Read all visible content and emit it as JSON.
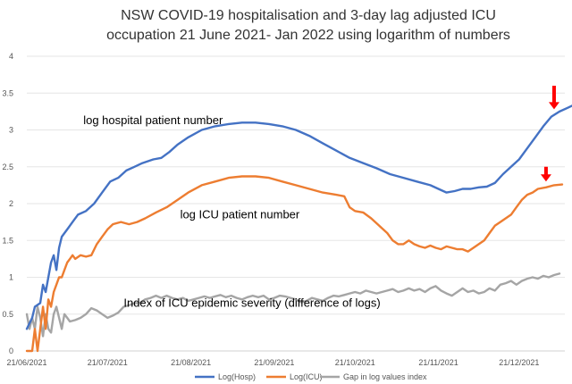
{
  "chart_data": {
    "type": "line",
    "title": "NSW COVID-19 hospitalisation and 3-day lag adjusted  ICU occupation 21 June 2021- Jan 2022 using logarithm of numbers",
    "title_lines": [
      "NSW COVID-19 hospitalisation and 3-day lag adjusted  ICU",
      "occupation 21 June 2021- Jan 2022 using logarithm of numbers"
    ],
    "xlabel": "",
    "ylabel": "",
    "ylim": [
      0,
      4
    ],
    "yticks": [
      "0",
      "0.5",
      "1",
      "1.5",
      "2",
      "2.5",
      "3",
      "3.5",
      "4"
    ],
    "x_range_days": [
      0,
      200
    ],
    "xticks": [
      {
        "label": "21/06/2021",
        "day": 0
      },
      {
        "label": "21/07/2021",
        "day": 30
      },
      {
        "label": "21/08/2021",
        "day": 61
      },
      {
        "label": "21/09/2021",
        "day": 92
      },
      {
        "label": "21/10/2021",
        "day": 122
      },
      {
        "label": "21/11/2021",
        "day": 153
      },
      {
        "label": "21/12/2021",
        "day": 183
      }
    ],
    "x_unit": "days since 21/06/2021",
    "series": [
      {
        "name": "Log(Hosp)",
        "color": "#4472c4",
        "points": [
          [
            0,
            0.3
          ],
          [
            2,
            0.45
          ],
          [
            3,
            0.6
          ],
          [
            5,
            0.65
          ],
          [
            6,
            0.9
          ],
          [
            7,
            0.8
          ],
          [
            8,
            1.0
          ],
          [
            9,
            1.2
          ],
          [
            10,
            1.3
          ],
          [
            11,
            1.1
          ],
          [
            12,
            1.4
          ],
          [
            13,
            1.55
          ],
          [
            15,
            1.65
          ],
          [
            17,
            1.75
          ],
          [
            19,
            1.85
          ],
          [
            22,
            1.9
          ],
          [
            25,
            2.0
          ],
          [
            28,
            2.15
          ],
          [
            31,
            2.3
          ],
          [
            34,
            2.35
          ],
          [
            37,
            2.45
          ],
          [
            40,
            2.5
          ],
          [
            43,
            2.55
          ],
          [
            47,
            2.6
          ],
          [
            50,
            2.62
          ],
          [
            53,
            2.7
          ],
          [
            56,
            2.8
          ],
          [
            60,
            2.9
          ],
          [
            65,
            3.0
          ],
          [
            70,
            3.05
          ],
          [
            75,
            3.08
          ],
          [
            80,
            3.1
          ],
          [
            85,
            3.1
          ],
          [
            90,
            3.08
          ],
          [
            95,
            3.05
          ],
          [
            100,
            3.0
          ],
          [
            105,
            2.92
          ],
          [
            110,
            2.82
          ],
          [
            115,
            2.72
          ],
          [
            120,
            2.62
          ],
          [
            125,
            2.55
          ],
          [
            130,
            2.48
          ],
          [
            135,
            2.4
          ],
          [
            140,
            2.35
          ],
          [
            145,
            2.3
          ],
          [
            150,
            2.25
          ],
          [
            153,
            2.2
          ],
          [
            156,
            2.15
          ],
          [
            159,
            2.17
          ],
          [
            162,
            2.2
          ],
          [
            165,
            2.2
          ],
          [
            168,
            2.22
          ],
          [
            171,
            2.23
          ],
          [
            174,
            2.28
          ],
          [
            177,
            2.4
          ],
          [
            180,
            2.5
          ],
          [
            183,
            2.6
          ],
          [
            186,
            2.75
          ],
          [
            189,
            2.9
          ],
          [
            192,
            3.05
          ],
          [
            195,
            3.18
          ],
          [
            198,
            3.25
          ],
          [
            201,
            3.3
          ],
          [
            204,
            3.35
          ],
          [
            206,
            3.38
          ]
        ]
      },
      {
        "name": "Log(ICU)",
        "color": "#ed7d31",
        "points": [
          [
            0,
            0.0
          ],
          [
            2,
            0.0
          ],
          [
            3,
            0.3
          ],
          [
            4,
            0.0
          ],
          [
            6,
            0.6
          ],
          [
            7,
            0.3
          ],
          [
            8,
            0.7
          ],
          [
            9,
            0.6
          ],
          [
            10,
            0.8
          ],
          [
            11,
            0.9
          ],
          [
            12,
            1.0
          ],
          [
            13,
            1.0
          ],
          [
            14,
            1.1
          ],
          [
            15,
            1.2
          ],
          [
            16,
            1.25
          ],
          [
            17,
            1.3
          ],
          [
            18,
            1.25
          ],
          [
            20,
            1.3
          ],
          [
            22,
            1.28
          ],
          [
            24,
            1.3
          ],
          [
            26,
            1.45
          ],
          [
            28,
            1.55
          ],
          [
            30,
            1.65
          ],
          [
            32,
            1.72
          ],
          [
            35,
            1.75
          ],
          [
            38,
            1.72
          ],
          [
            41,
            1.75
          ],
          [
            44,
            1.8
          ],
          [
            48,
            1.88
          ],
          [
            52,
            1.95
          ],
          [
            56,
            2.05
          ],
          [
            60,
            2.15
          ],
          [
            65,
            2.25
          ],
          [
            70,
            2.3
          ],
          [
            75,
            2.35
          ],
          [
            80,
            2.37
          ],
          [
            85,
            2.37
          ],
          [
            90,
            2.35
          ],
          [
            95,
            2.3
          ],
          [
            100,
            2.25
          ],
          [
            105,
            2.2
          ],
          [
            110,
            2.15
          ],
          [
            115,
            2.12
          ],
          [
            118,
            2.1
          ],
          [
            120,
            1.95
          ],
          [
            122,
            1.9
          ],
          [
            125,
            1.88
          ],
          [
            128,
            1.8
          ],
          [
            131,
            1.7
          ],
          [
            134,
            1.6
          ],
          [
            136,
            1.5
          ],
          [
            138,
            1.45
          ],
          [
            140,
            1.45
          ],
          [
            142,
            1.5
          ],
          [
            144,
            1.45
          ],
          [
            146,
            1.42
          ],
          [
            148,
            1.4
          ],
          [
            150,
            1.43
          ],
          [
            152,
            1.4
          ],
          [
            154,
            1.38
          ],
          [
            156,
            1.42
          ],
          [
            158,
            1.4
          ],
          [
            160,
            1.38
          ],
          [
            162,
            1.38
          ],
          [
            164,
            1.35
          ],
          [
            166,
            1.4
          ],
          [
            168,
            1.45
          ],
          [
            170,
            1.5
          ],
          [
            172,
            1.6
          ],
          [
            174,
            1.7
          ],
          [
            176,
            1.75
          ],
          [
            178,
            1.8
          ],
          [
            180,
            1.85
          ],
          [
            182,
            1.95
          ],
          [
            184,
            2.05
          ],
          [
            186,
            2.12
          ],
          [
            188,
            2.15
          ],
          [
            190,
            2.2
          ],
          [
            193,
            2.22
          ],
          [
            196,
            2.25
          ],
          [
            199,
            2.26
          ]
        ]
      },
      {
        "name": "Gap in log values index",
        "color": "#a5a5a5",
        "points": [
          [
            0,
            0.5
          ],
          [
            1,
            0.3
          ],
          [
            2,
            0.45
          ],
          [
            3,
            0.3
          ],
          [
            4,
            0.6
          ],
          [
            5,
            0.45
          ],
          [
            6,
            0.2
          ],
          [
            7,
            0.5
          ],
          [
            8,
            0.3
          ],
          [
            9,
            0.25
          ],
          [
            10,
            0.5
          ],
          [
            11,
            0.6
          ],
          [
            12,
            0.45
          ],
          [
            13,
            0.3
          ],
          [
            14,
            0.5
          ],
          [
            15,
            0.45
          ],
          [
            16,
            0.4
          ],
          [
            18,
            0.42
          ],
          [
            20,
            0.45
          ],
          [
            22,
            0.5
          ],
          [
            24,
            0.58
          ],
          [
            26,
            0.55
          ],
          [
            28,
            0.5
          ],
          [
            30,
            0.45
          ],
          [
            32,
            0.48
          ],
          [
            34,
            0.52
          ],
          [
            36,
            0.6
          ],
          [
            38,
            0.62
          ],
          [
            40,
            0.65
          ],
          [
            42,
            0.65
          ],
          [
            44,
            0.7
          ],
          [
            46,
            0.72
          ],
          [
            48,
            0.75
          ],
          [
            50,
            0.72
          ],
          [
            52,
            0.75
          ],
          [
            54,
            0.72
          ],
          [
            56,
            0.7
          ],
          [
            58,
            0.72
          ],
          [
            60,
            0.68
          ],
          [
            62,
            0.7
          ],
          [
            64,
            0.72
          ],
          [
            66,
            0.74
          ],
          [
            68,
            0.72
          ],
          [
            70,
            0.74
          ],
          [
            72,
            0.76
          ],
          [
            74,
            0.73
          ],
          [
            76,
            0.75
          ],
          [
            78,
            0.72
          ],
          [
            80,
            0.7
          ],
          [
            82,
            0.73
          ],
          [
            84,
            0.75
          ],
          [
            86,
            0.73
          ],
          [
            88,
            0.75
          ],
          [
            90,
            0.7
          ],
          [
            92,
            0.72
          ],
          [
            94,
            0.75
          ],
          [
            96,
            0.74
          ],
          [
            98,
            0.72
          ],
          [
            100,
            0.7
          ],
          [
            102,
            0.66
          ],
          [
            104,
            0.68
          ],
          [
            106,
            0.72
          ],
          [
            108,
            0.7
          ],
          [
            110,
            0.68
          ],
          [
            112,
            0.72
          ],
          [
            114,
            0.75
          ],
          [
            116,
            0.74
          ],
          [
            118,
            0.76
          ],
          [
            120,
            0.78
          ],
          [
            122,
            0.8
          ],
          [
            124,
            0.78
          ],
          [
            126,
            0.82
          ],
          [
            128,
            0.8
          ],
          [
            130,
            0.78
          ],
          [
            132,
            0.8
          ],
          [
            134,
            0.82
          ],
          [
            136,
            0.84
          ],
          [
            138,
            0.8
          ],
          [
            140,
            0.82
          ],
          [
            142,
            0.85
          ],
          [
            144,
            0.82
          ],
          [
            146,
            0.84
          ],
          [
            148,
            0.8
          ],
          [
            150,
            0.85
          ],
          [
            152,
            0.88
          ],
          [
            154,
            0.82
          ],
          [
            156,
            0.78
          ],
          [
            158,
            0.75
          ],
          [
            160,
            0.8
          ],
          [
            162,
            0.85
          ],
          [
            164,
            0.8
          ],
          [
            166,
            0.82
          ],
          [
            168,
            0.78
          ],
          [
            170,
            0.8
          ],
          [
            172,
            0.85
          ],
          [
            174,
            0.82
          ],
          [
            176,
            0.9
          ],
          [
            178,
            0.92
          ],
          [
            180,
            0.95
          ],
          [
            182,
            0.9
          ],
          [
            184,
            0.95
          ],
          [
            186,
            0.98
          ],
          [
            188,
            1.0
          ],
          [
            190,
            0.98
          ],
          [
            192,
            1.02
          ],
          [
            194,
            1.0
          ],
          [
            196,
            1.03
          ],
          [
            198,
            1.05
          ]
        ]
      }
    ],
    "annotations": [
      {
        "text": "log hospital patient number",
        "day": 21,
        "y": 3.08
      },
      {
        "text": "log ICU patient number",
        "day": 57,
        "y": 1.8
      },
      {
        "text": "Index of ICU epidemic severity (difference of logs)",
        "day": 36,
        "y": 0.6
      }
    ],
    "arrows": [
      {
        "day": 196,
        "y_tip": 3.28,
        "y_tail": 3.6,
        "color": "#ff0000"
      },
      {
        "day": 193,
        "y_tip": 2.3,
        "y_tail": 2.5,
        "color": "#ff0000"
      }
    ],
    "legend": {
      "position": "bottom",
      "items": [
        "Log(Hosp)",
        "Log(ICU)",
        "Gap in log values index"
      ]
    },
    "grid": true
  }
}
